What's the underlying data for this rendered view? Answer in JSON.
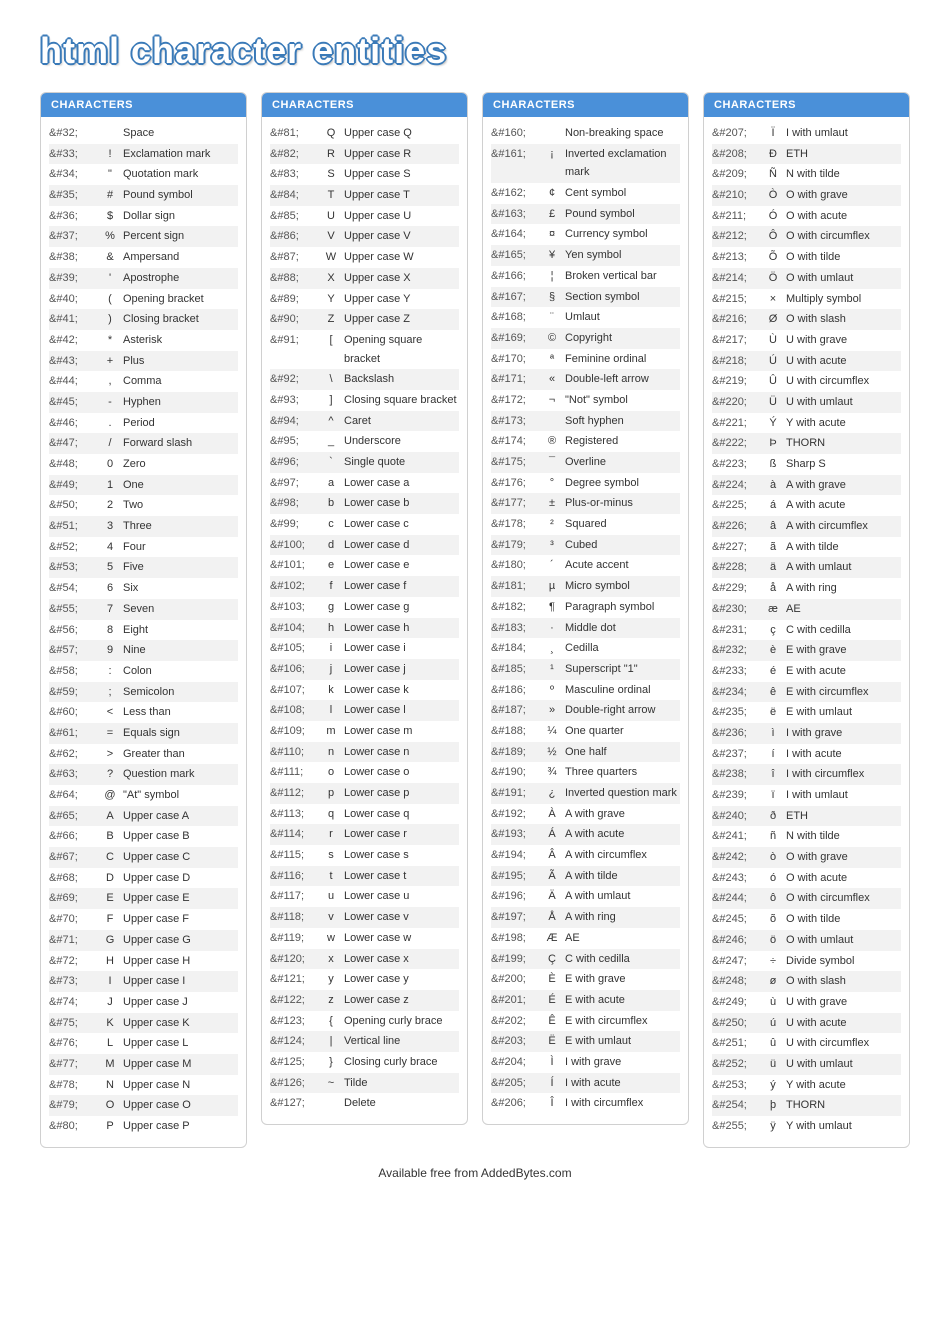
{
  "title": "html character entities",
  "column_header": "CHARACTERS",
  "footer": "Available free from AddedBytes.com",
  "columns": [
    [
      {
        "code": "&#32;",
        "char": " ",
        "desc": "Space"
      },
      {
        "code": "&#33;",
        "char": "!",
        "desc": "Exclamation mark"
      },
      {
        "code": "&#34;",
        "char": "\"",
        "desc": "Quotation mark"
      },
      {
        "code": "&#35;",
        "char": "#",
        "desc": "Pound symbol"
      },
      {
        "code": "&#36;",
        "char": "$",
        "desc": "Dollar sign"
      },
      {
        "code": "&#37;",
        "char": "%",
        "desc": "Percent sign"
      },
      {
        "code": "&#38;",
        "char": "&",
        "desc": "Ampersand"
      },
      {
        "code": "&#39;",
        "char": "'",
        "desc": "Apostrophe"
      },
      {
        "code": "&#40;",
        "char": "(",
        "desc": "Opening bracket"
      },
      {
        "code": "&#41;",
        "char": ")",
        "desc": "Closing bracket"
      },
      {
        "code": "&#42;",
        "char": "*",
        "desc": "Asterisk"
      },
      {
        "code": "&#43;",
        "char": "+",
        "desc": "Plus"
      },
      {
        "code": "&#44;",
        "char": ",",
        "desc": "Comma"
      },
      {
        "code": "&#45;",
        "char": "-",
        "desc": "Hyphen"
      },
      {
        "code": "&#46;",
        "char": ".",
        "desc": "Period"
      },
      {
        "code": "&#47;",
        "char": "/",
        "desc": "Forward slash"
      },
      {
        "code": "&#48;",
        "char": "0",
        "desc": "Zero"
      },
      {
        "code": "&#49;",
        "char": "1",
        "desc": "One"
      },
      {
        "code": "&#50;",
        "char": "2",
        "desc": "Two"
      },
      {
        "code": "&#51;",
        "char": "3",
        "desc": "Three"
      },
      {
        "code": "&#52;",
        "char": "4",
        "desc": "Four"
      },
      {
        "code": "&#53;",
        "char": "5",
        "desc": "Five"
      },
      {
        "code": "&#54;",
        "char": "6",
        "desc": "Six"
      },
      {
        "code": "&#55;",
        "char": "7",
        "desc": "Seven"
      },
      {
        "code": "&#56;",
        "char": "8",
        "desc": "Eight"
      },
      {
        "code": "&#57;",
        "char": "9",
        "desc": "Nine"
      },
      {
        "code": "&#58;",
        "char": ":",
        "desc": "Colon"
      },
      {
        "code": "&#59;",
        "char": ";",
        "desc": "Semicolon"
      },
      {
        "code": "&#60;",
        "char": "<",
        "desc": "Less than"
      },
      {
        "code": "&#61;",
        "char": "=",
        "desc": "Equals sign"
      },
      {
        "code": "&#62;",
        "char": ">",
        "desc": "Greater than"
      },
      {
        "code": "&#63;",
        "char": "?",
        "desc": "Question mark"
      },
      {
        "code": "&#64;",
        "char": "@",
        "desc": "\"At\" symbol"
      },
      {
        "code": "&#65;",
        "char": "A",
        "desc": "Upper case A"
      },
      {
        "code": "&#66;",
        "char": "B",
        "desc": "Upper case B"
      },
      {
        "code": "&#67;",
        "char": "C",
        "desc": "Upper case C"
      },
      {
        "code": "&#68;",
        "char": "D",
        "desc": "Upper case D"
      },
      {
        "code": "&#69;",
        "char": "E",
        "desc": "Upper case E"
      },
      {
        "code": "&#70;",
        "char": "F",
        "desc": "Upper case F"
      },
      {
        "code": "&#71;",
        "char": "G",
        "desc": "Upper case G"
      },
      {
        "code": "&#72;",
        "char": "H",
        "desc": "Upper case H"
      },
      {
        "code": "&#73;",
        "char": "I",
        "desc": "Upper case I"
      },
      {
        "code": "&#74;",
        "char": "J",
        "desc": "Upper case J"
      },
      {
        "code": "&#75;",
        "char": "K",
        "desc": "Upper case K"
      },
      {
        "code": "&#76;",
        "char": "L",
        "desc": "Upper case L"
      },
      {
        "code": "&#77;",
        "char": "M",
        "desc": "Upper case M"
      },
      {
        "code": "&#78;",
        "char": "N",
        "desc": "Upper case N"
      },
      {
        "code": "&#79;",
        "char": "O",
        "desc": "Upper case O"
      },
      {
        "code": "&#80;",
        "char": "P",
        "desc": "Upper case P"
      }
    ],
    [
      {
        "code": "&#81;",
        "char": "Q",
        "desc": "Upper case Q"
      },
      {
        "code": "&#82;",
        "char": "R",
        "desc": "Upper case R"
      },
      {
        "code": "&#83;",
        "char": "S",
        "desc": "Upper case S"
      },
      {
        "code": "&#84;",
        "char": "T",
        "desc": "Upper case T"
      },
      {
        "code": "&#85;",
        "char": "U",
        "desc": "Upper case U"
      },
      {
        "code": "&#86;",
        "char": "V",
        "desc": "Upper case V"
      },
      {
        "code": "&#87;",
        "char": "W",
        "desc": "Upper case W"
      },
      {
        "code": "&#88;",
        "char": "X",
        "desc": "Upper case X"
      },
      {
        "code": "&#89;",
        "char": "Y",
        "desc": "Upper case Y"
      },
      {
        "code": "&#90;",
        "char": "Z",
        "desc": "Upper case Z"
      },
      {
        "code": "&#91;",
        "char": "[",
        "desc": "Opening square bracket"
      },
      {
        "code": "&#92;",
        "char": "\\",
        "desc": "Backslash"
      },
      {
        "code": "&#93;",
        "char": "]",
        "desc": "Closing square bracket"
      },
      {
        "code": "&#94;",
        "char": "^",
        "desc": "Caret"
      },
      {
        "code": "&#95;",
        "char": "_",
        "desc": "Underscore"
      },
      {
        "code": "&#96;",
        "char": "`",
        "desc": "Single quote"
      },
      {
        "code": "&#97;",
        "char": "a",
        "desc": "Lower case a"
      },
      {
        "code": "&#98;",
        "char": "b",
        "desc": "Lower case b"
      },
      {
        "code": "&#99;",
        "char": "c",
        "desc": "Lower case c"
      },
      {
        "code": "&#100;",
        "char": "d",
        "desc": "Lower case d"
      },
      {
        "code": "&#101;",
        "char": "e",
        "desc": "Lower case e"
      },
      {
        "code": "&#102;",
        "char": "f",
        "desc": "Lower case f"
      },
      {
        "code": "&#103;",
        "char": "g",
        "desc": "Lower case g"
      },
      {
        "code": "&#104;",
        "char": "h",
        "desc": "Lower case h"
      },
      {
        "code": "&#105;",
        "char": "i",
        "desc": "Lower case i"
      },
      {
        "code": "&#106;",
        "char": "j",
        "desc": "Lower case j"
      },
      {
        "code": "&#107;",
        "char": "k",
        "desc": "Lower case k"
      },
      {
        "code": "&#108;",
        "char": "l",
        "desc": "Lower case l"
      },
      {
        "code": "&#109;",
        "char": "m",
        "desc": "Lower case m"
      },
      {
        "code": "&#110;",
        "char": "n",
        "desc": "Lower case n"
      },
      {
        "code": "&#111;",
        "char": "o",
        "desc": "Lower case o"
      },
      {
        "code": "&#112;",
        "char": "p",
        "desc": "Lower case p"
      },
      {
        "code": "&#113;",
        "char": "q",
        "desc": "Lower case q"
      },
      {
        "code": "&#114;",
        "char": "r",
        "desc": "Lower case r"
      },
      {
        "code": "&#115;",
        "char": "s",
        "desc": "Lower case s"
      },
      {
        "code": "&#116;",
        "char": "t",
        "desc": "Lower case t"
      },
      {
        "code": "&#117;",
        "char": "u",
        "desc": "Lower case u"
      },
      {
        "code": "&#118;",
        "char": "v",
        "desc": "Lower case v"
      },
      {
        "code": "&#119;",
        "char": "w",
        "desc": "Lower case w"
      },
      {
        "code": "&#120;",
        "char": "x",
        "desc": "Lower case x"
      },
      {
        "code": "&#121;",
        "char": "y",
        "desc": "Lower case y"
      },
      {
        "code": "&#122;",
        "char": "z",
        "desc": "Lower case z"
      },
      {
        "code": "&#123;",
        "char": "{",
        "desc": "Opening curly brace"
      },
      {
        "code": "&#124;",
        "char": "|",
        "desc": "Vertical line"
      },
      {
        "code": "&#125;",
        "char": "}",
        "desc": "Closing curly brace"
      },
      {
        "code": "&#126;",
        "char": "~",
        "desc": "Tilde"
      },
      {
        "code": "&#127;",
        "char": "",
        "desc": "Delete"
      }
    ],
    [
      {
        "code": "&#160;",
        "char": " ",
        "desc": "Non-breaking space"
      },
      {
        "code": "&#161;",
        "char": "¡",
        "desc": "Inverted exclamation mark"
      },
      {
        "code": "&#162;",
        "char": "¢",
        "desc": "Cent symbol"
      },
      {
        "code": "&#163;",
        "char": "£",
        "desc": "Pound symbol"
      },
      {
        "code": "&#164;",
        "char": "¤",
        "desc": "Currency symbol"
      },
      {
        "code": "&#165;",
        "char": "¥",
        "desc": "Yen symbol"
      },
      {
        "code": "&#166;",
        "char": "¦",
        "desc": "Broken vertical bar"
      },
      {
        "code": "&#167;",
        "char": "§",
        "desc": "Section symbol"
      },
      {
        "code": "&#168;",
        "char": "¨",
        "desc": "Umlaut"
      },
      {
        "code": "&#169;",
        "char": "©",
        "desc": "Copyright"
      },
      {
        "code": "&#170;",
        "char": "ª",
        "desc": "Feminine ordinal"
      },
      {
        "code": "&#171;",
        "char": "«",
        "desc": "Double-left arrow"
      },
      {
        "code": "&#172;",
        "char": "¬",
        "desc": "\"Not\" symbol"
      },
      {
        "code": "&#173;",
        "char": "",
        "desc": "Soft hyphen"
      },
      {
        "code": "&#174;",
        "char": "®",
        "desc": "Registered"
      },
      {
        "code": "&#175;",
        "char": "¯",
        "desc": "Overline"
      },
      {
        "code": "&#176;",
        "char": "°",
        "desc": "Degree symbol"
      },
      {
        "code": "&#177;",
        "char": "±",
        "desc": "Plus-or-minus"
      },
      {
        "code": "&#178;",
        "char": "²",
        "desc": "Squared"
      },
      {
        "code": "&#179;",
        "char": "³",
        "desc": "Cubed"
      },
      {
        "code": "&#180;",
        "char": "´",
        "desc": "Acute accent"
      },
      {
        "code": "&#181;",
        "char": "µ",
        "desc": "Micro symbol"
      },
      {
        "code": "&#182;",
        "char": "¶",
        "desc": "Paragraph symbol"
      },
      {
        "code": "&#183;",
        "char": "·",
        "desc": "Middle dot"
      },
      {
        "code": "&#184;",
        "char": "¸",
        "desc": "Cedilla"
      },
      {
        "code": "&#185;",
        "char": "¹",
        "desc": "Superscript \"1\""
      },
      {
        "code": "&#186;",
        "char": "º",
        "desc": "Masculine ordinal"
      },
      {
        "code": "&#187;",
        "char": "»",
        "desc": "Double-right arrow"
      },
      {
        "code": "&#188;",
        "char": "¼",
        "desc": "One quarter"
      },
      {
        "code": "&#189;",
        "char": "½",
        "desc": "One half"
      },
      {
        "code": "&#190;",
        "char": "¾",
        "desc": "Three quarters"
      },
      {
        "code": "&#191;",
        "char": "¿",
        "desc": "Inverted question mark"
      },
      {
        "code": "&#192;",
        "char": "À",
        "desc": "A with grave"
      },
      {
        "code": "&#193;",
        "char": "Á",
        "desc": "A with acute"
      },
      {
        "code": "&#194;",
        "char": "Â",
        "desc": "A with circumflex"
      },
      {
        "code": "&#195;",
        "char": "Ã",
        "desc": "A with tilde"
      },
      {
        "code": "&#196;",
        "char": "Ä",
        "desc": "A with umlaut"
      },
      {
        "code": "&#197;",
        "char": "Å",
        "desc": "A with ring"
      },
      {
        "code": "&#198;",
        "char": "Æ",
        "desc": "AE"
      },
      {
        "code": "&#199;",
        "char": "Ç",
        "desc": "C with cedilla"
      },
      {
        "code": "&#200;",
        "char": "È",
        "desc": "E with grave"
      },
      {
        "code": "&#201;",
        "char": "É",
        "desc": "E with acute"
      },
      {
        "code": "&#202;",
        "char": "Ê",
        "desc": "E with circumflex"
      },
      {
        "code": "&#203;",
        "char": "Ë",
        "desc": "E with umlaut"
      },
      {
        "code": "&#204;",
        "char": "Ì",
        "desc": "I with grave"
      },
      {
        "code": "&#205;",
        "char": "Í",
        "desc": "I with acute"
      },
      {
        "code": "&#206;",
        "char": "Î",
        "desc": "I with circumflex"
      }
    ],
    [
      {
        "code": "&#207;",
        "char": "Ï",
        "desc": "I with umlaut"
      },
      {
        "code": "&#208;",
        "char": "Ð",
        "desc": "ETH"
      },
      {
        "code": "&#209;",
        "char": "Ñ",
        "desc": "N with tilde"
      },
      {
        "code": "&#210;",
        "char": "Ò",
        "desc": "O with grave"
      },
      {
        "code": "&#211;",
        "char": "Ó",
        "desc": "O with acute"
      },
      {
        "code": "&#212;",
        "char": "Ô",
        "desc": "O with circumflex"
      },
      {
        "code": "&#213;",
        "char": "Õ",
        "desc": "O with tilde"
      },
      {
        "code": "&#214;",
        "char": "Ö",
        "desc": "O with umlaut"
      },
      {
        "code": "&#215;",
        "char": "×",
        "desc": "Multiply symbol"
      },
      {
        "code": "&#216;",
        "char": "Ø",
        "desc": "O with slash"
      },
      {
        "code": "&#217;",
        "char": "Ù",
        "desc": "U with grave"
      },
      {
        "code": "&#218;",
        "char": "Ú",
        "desc": "U with acute"
      },
      {
        "code": "&#219;",
        "char": "Û",
        "desc": "U with circumflex"
      },
      {
        "code": "&#220;",
        "char": "Ü",
        "desc": "U with umlaut"
      },
      {
        "code": "&#221;",
        "char": "Ý",
        "desc": "Y with acute"
      },
      {
        "code": "&#222;",
        "char": "Þ",
        "desc": "THORN"
      },
      {
        "code": "&#223;",
        "char": "ß",
        "desc": "Sharp S"
      },
      {
        "code": "&#224;",
        "char": "à",
        "desc": "A with grave"
      },
      {
        "code": "&#225;",
        "char": "á",
        "desc": "A with acute"
      },
      {
        "code": "&#226;",
        "char": "â",
        "desc": "A with circumflex"
      },
      {
        "code": "&#227;",
        "char": "ã",
        "desc": "A with tilde"
      },
      {
        "code": "&#228;",
        "char": "ä",
        "desc": "A with umlaut"
      },
      {
        "code": "&#229;",
        "char": "å",
        "desc": "A with ring"
      },
      {
        "code": "&#230;",
        "char": "æ",
        "desc": "AE"
      },
      {
        "code": "&#231;",
        "char": "ç",
        "desc": "C with cedilla"
      },
      {
        "code": "&#232;",
        "char": "è",
        "desc": "E with grave"
      },
      {
        "code": "&#233;",
        "char": "é",
        "desc": "E with acute"
      },
      {
        "code": "&#234;",
        "char": "ê",
        "desc": "E with circumflex"
      },
      {
        "code": "&#235;",
        "char": "ë",
        "desc": "E with umlaut"
      },
      {
        "code": "&#236;",
        "char": "ì",
        "desc": "I with grave"
      },
      {
        "code": "&#237;",
        "char": "í",
        "desc": "I with acute"
      },
      {
        "code": "&#238;",
        "char": "î",
        "desc": "I with circumflex"
      },
      {
        "code": "&#239;",
        "char": "ï",
        "desc": "I with umlaut"
      },
      {
        "code": "&#240;",
        "char": "ð",
        "desc": "ETH"
      },
      {
        "code": "&#241;",
        "char": "ñ",
        "desc": "N with tilde"
      },
      {
        "code": "&#242;",
        "char": "ò",
        "desc": "O with grave"
      },
      {
        "code": "&#243;",
        "char": "ó",
        "desc": "O with acute"
      },
      {
        "code": "&#244;",
        "char": "ô",
        "desc": "O with circumflex"
      },
      {
        "code": "&#245;",
        "char": "õ",
        "desc": "O with tilde"
      },
      {
        "code": "&#246;",
        "char": "ö",
        "desc": "O with umlaut"
      },
      {
        "code": "&#247;",
        "char": "÷",
        "desc": "Divide symbol"
      },
      {
        "code": "&#248;",
        "char": "ø",
        "desc": "O with slash"
      },
      {
        "code": "&#249;",
        "char": "ù",
        "desc": "U with grave"
      },
      {
        "code": "&#250;",
        "char": "ú",
        "desc": "U with acute"
      },
      {
        "code": "&#251;",
        "char": "û",
        "desc": "U with circumflex"
      },
      {
        "code": "&#252;",
        "char": "ü",
        "desc": "U with umlaut"
      },
      {
        "code": "&#253;",
        "char": "ý",
        "desc": "Y with acute"
      },
      {
        "code": "&#254;",
        "char": "þ",
        "desc": "THORN"
      },
      {
        "code": "&#255;",
        "char": "ÿ",
        "desc": "Y with umlaut"
      }
    ]
  ]
}
